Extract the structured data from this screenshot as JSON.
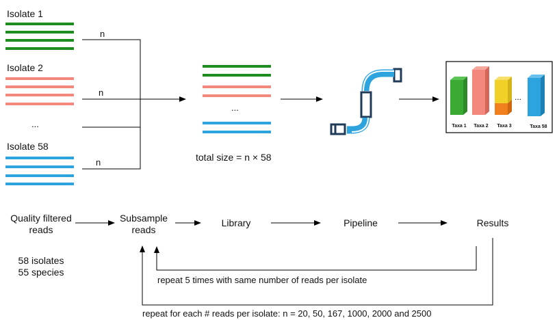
{
  "top": {
    "isolates": [
      {
        "label": "Isolate 1",
        "color": "#1e8c1e",
        "edge": "n"
      },
      {
        "label": "Isolate 2",
        "color": "#f2897c",
        "edge": "n"
      },
      {
        "label": "...",
        "edge": ""
      },
      {
        "label": "Isolate 58",
        "color": "#2ea4de",
        "edge": "n"
      }
    ],
    "library_ellipsis": "...",
    "total_size": "total size = n × 58",
    "results_chart": {
      "ellipsis": "...",
      "taxa": [
        {
          "label": "Taxa 1",
          "color": "#3aaa35",
          "label_color": "#1e8c1e"
        },
        {
          "label": "Taxa 2",
          "color": "#f2897c",
          "label_color": "#e0675a"
        },
        {
          "label": "Taxa 3",
          "color": "#f1d028",
          "accent": "#f07f1e",
          "label_color": "#111111"
        },
        {
          "label": "Taxa 58",
          "color": "#2ea4de",
          "label_color": "#2ea4de"
        }
      ]
    }
  },
  "workflow": {
    "quality_filtered": [
      "Quality filtered",
      "reads"
    ],
    "counts": [
      "58 isolates",
      "55 species"
    ],
    "subsample": [
      "Subsample",
      "reads"
    ],
    "library": "Library",
    "pipeline": "Pipeline",
    "results": "Results",
    "loop_inner": "repeat 5 times with same number of reads per isolate",
    "loop_outer": "repeat for each # reads per isolate: n = 20, 50, 167, 1000, 2000 and 2500"
  }
}
